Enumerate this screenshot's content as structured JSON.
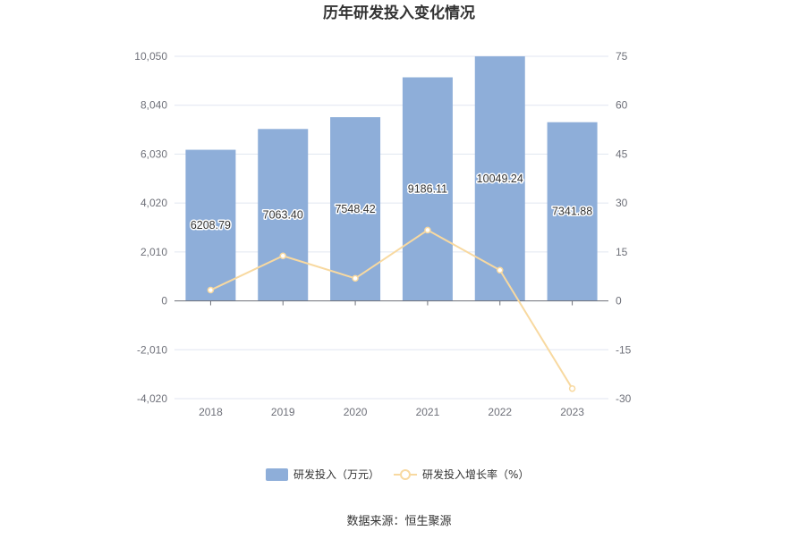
{
  "chart_data": {
    "type": "bar",
    "title": "历年研发投入变化情况",
    "categories": [
      "2018",
      "2019",
      "2020",
      "2021",
      "2022",
      "2023"
    ],
    "series": [
      {
        "name": "研发投入（万元）",
        "type": "bar",
        "axis": "left",
        "color": "#8eaed9",
        "values": [
          6208.79,
          7063.4,
          7548.42,
          9186.11,
          10049.24,
          7341.88
        ],
        "labels": [
          "6208.79",
          "7063.40",
          "7548.42",
          "9186.11",
          "10049.24",
          "7341.88"
        ]
      },
      {
        "name": "研发投入增长率（%）",
        "type": "line",
        "axis": "right",
        "color": "#f8d9a0",
        "values": [
          3.3,
          13.8,
          6.9,
          21.7,
          9.4,
          -26.9
        ]
      }
    ],
    "left_axis": {
      "ticks": [
        "10,050",
        "8,040",
        "6,030",
        "4,020",
        "2,010",
        "0",
        "-2,010",
        "-4,020"
      ],
      "tick_values": [
        10050,
        8040,
        6030,
        4020,
        2010,
        0,
        -2010,
        -4020
      ],
      "range": [
        -4020,
        10050
      ]
    },
    "right_axis": {
      "ticks": [
        "75",
        "60",
        "45",
        "30",
        "15",
        "0",
        "-15",
        "-30"
      ],
      "tick_values": [
        75,
        60,
        45,
        30,
        15,
        0,
        -15,
        -30
      ],
      "range": [
        -30,
        75
      ]
    },
    "grid": true,
    "legend_position": "bottom",
    "source": "数据来源：恒生聚源"
  }
}
